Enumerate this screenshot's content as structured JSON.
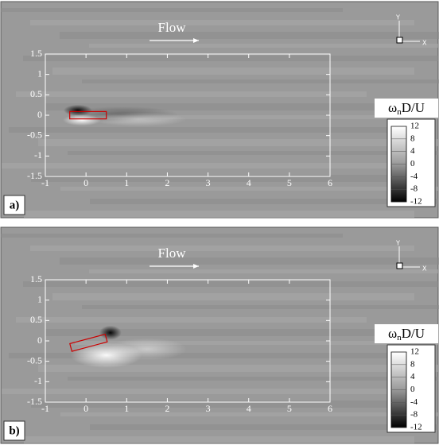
{
  "chart_data": [
    {
      "type": "contour",
      "panel_label": "a)",
      "annotation": "Flow",
      "axis_triad": [
        "Y",
        "X"
      ],
      "xlim": [
        -1,
        6
      ],
      "ylim": [
        -1.5,
        1.5
      ],
      "xticks": [
        -1,
        0,
        1,
        2,
        3,
        4,
        5,
        6
      ],
      "yticks": [
        1.5,
        1,
        0.5,
        0,
        -0.5,
        -1,
        -1.5
      ],
      "colorbar": {
        "symbol": "ω",
        "subscript": "n",
        "rest": "D/U",
        "lim": [
          -12,
          12
        ],
        "ticks": [
          12,
          8,
          4,
          0,
          -4,
          -8,
          -12
        ]
      }
    },
    {
      "type": "contour",
      "panel_label": "b)",
      "annotation": "Flow",
      "axis_triad": [
        "Y",
        "X"
      ],
      "xlim": [
        -1,
        6
      ],
      "ylim": [
        -1.5,
        1.5
      ],
      "xticks": [
        -1,
        0,
        1,
        2,
        3,
        4,
        5,
        6
      ],
      "yticks": [
        1.5,
        1,
        0.5,
        0,
        -0.5,
        -1,
        -1.5
      ],
      "colorbar": {
        "symbol": "ω",
        "subscript": "n",
        "rest": "D/U",
        "lim": [
          -12,
          12
        ],
        "ticks": [
          12,
          8,
          4,
          0,
          -4,
          -8,
          -12
        ]
      }
    }
  ]
}
